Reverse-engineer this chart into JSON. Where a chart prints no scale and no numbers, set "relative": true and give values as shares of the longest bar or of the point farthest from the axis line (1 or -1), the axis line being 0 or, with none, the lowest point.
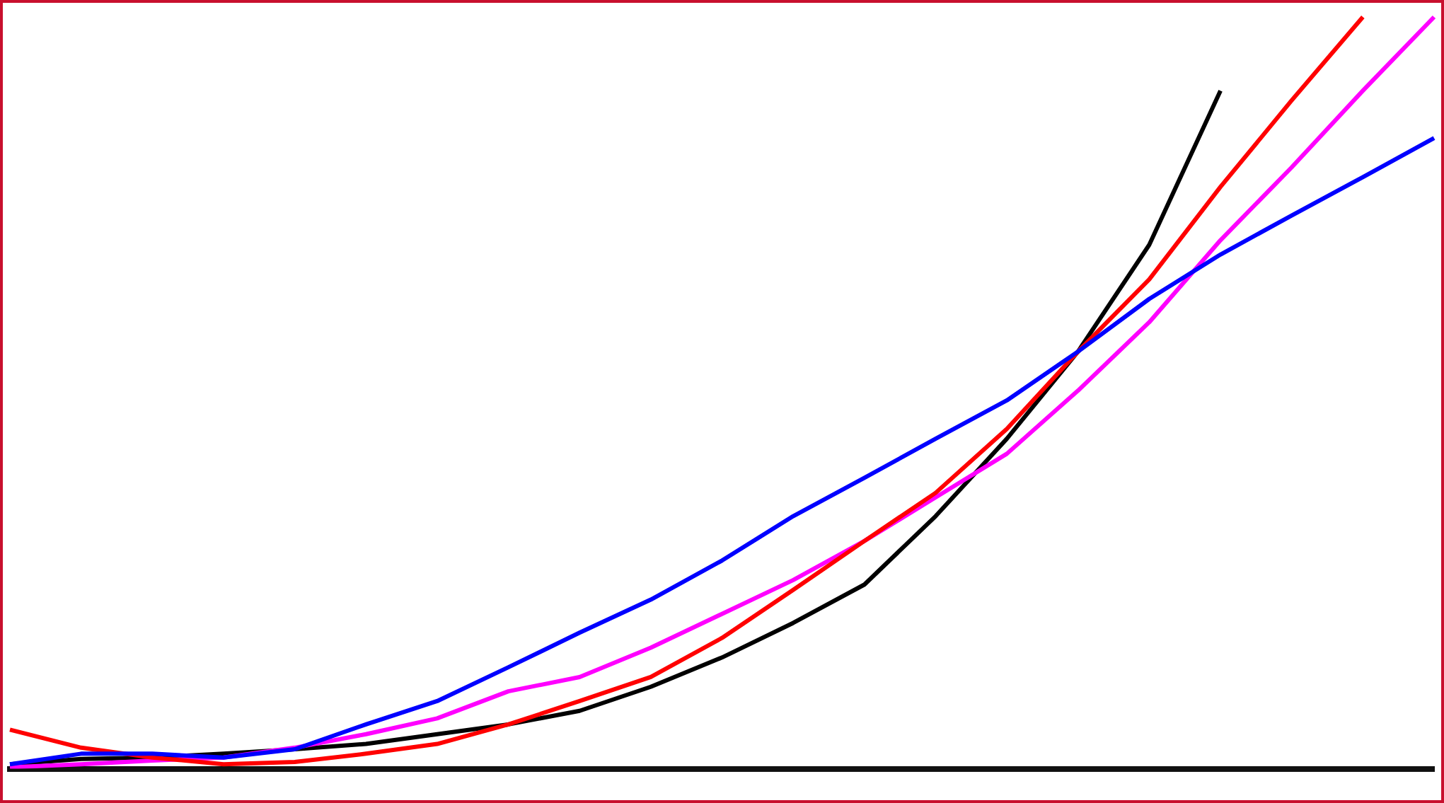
{
  "chart_data": {
    "type": "line",
    "relative": true,
    "legend": false,
    "grid": false,
    "categories": [
      null,
      null,
      null,
      null,
      null,
      null,
      null,
      null,
      null,
      null,
      null,
      null,
      null,
      null,
      null,
      null,
      null,
      null,
      null,
      null,
      null
    ],
    "series": [
      {
        "color": "#0000ff",
        "values": [
          0.006,
          0.02,
          0.02,
          0.015,
          0.026,
          0.059,
          0.09,
          0.135,
          0.181,
          0.225,
          0.277,
          0.336,
          0.387,
          0.439,
          0.49,
          0.555,
          0.625,
          0.684,
          0.736,
          0.787,
          0.839
        ]
      },
      {
        "color": "#ff0000",
        "values": [
          0.052,
          0.028,
          0.015,
          0.006,
          0.009,
          0.02,
          0.033,
          0.059,
          0.09,
          0.122,
          0.174,
          0.238,
          0.303,
          0.367,
          0.452,
          0.555,
          0.651,
          0.774,
          0.889,
          1,
          null
        ]
      },
      {
        "color": "#ff00ff",
        "values": [
          0.002,
          0.006,
          0.011,
          0.015,
          0.028,
          0.046,
          0.067,
          0.103,
          0.122,
          0.161,
          0.206,
          0.251,
          0.303,
          0.361,
          0.419,
          0.503,
          0.594,
          0.703,
          0.8,
          0.902,
          1
        ]
      },
      {
        "color": "#000000",
        "values": [
          0.006,
          0.013,
          0.015,
          0.02,
          0.026,
          0.033,
          0.046,
          0.059,
          0.077,
          0.109,
          0.148,
          0.194,
          0.245,
          0.336,
          0.439,
          0.555,
          0.697,
          0.902,
          null,
          null,
          null
        ]
      }
    ]
  }
}
